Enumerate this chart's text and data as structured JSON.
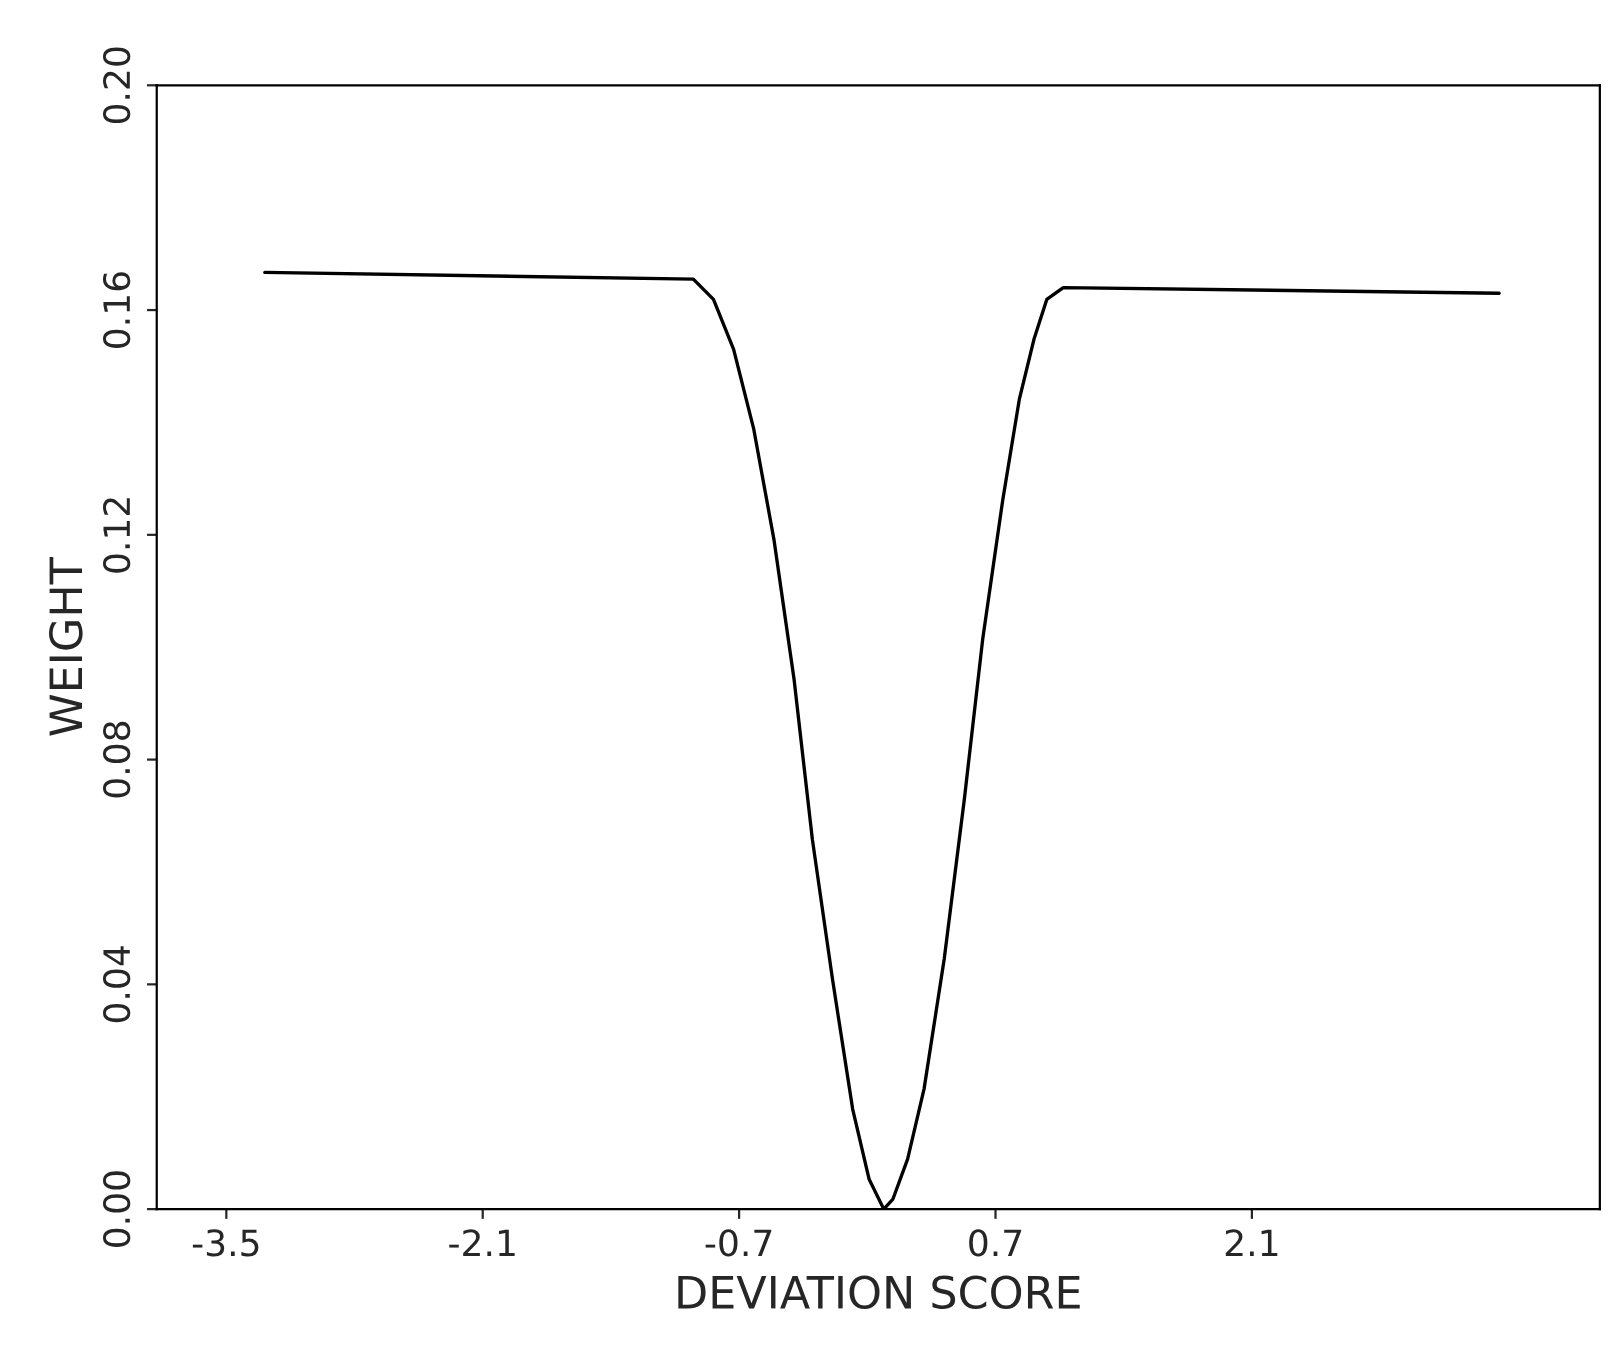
{
  "chart_data": {
    "type": "line",
    "xlabel": "DEVIATION SCORE",
    "ylabel": "WEIGHT",
    "x": [
      -3.29,
      -0.95,
      -0.84,
      -0.73,
      -0.62,
      -0.51,
      -0.4,
      -0.3,
      -0.19,
      -0.08,
      0.01,
      0.09,
      0.14,
      0.22,
      0.31,
      0.42,
      0.53,
      0.63,
      0.74,
      0.83,
      0.91,
      0.98,
      1.07,
      3.45
    ],
    "series": [
      {
        "color": "#000000",
        "values": [
          0.1667,
          0.1655,
          0.1619,
          0.153,
          0.1388,
          0.1192,
          0.0943,
          0.0658,
          0.0409,
          0.0178,
          0.0053,
          0.0,
          0.0018,
          0.0089,
          0.0214,
          0.0445,
          0.073,
          0.1014,
          0.1263,
          0.1441,
          0.1548,
          0.1619,
          0.164,
          0.163
        ]
      }
    ],
    "xlim": [
      -3.88,
      4.0
    ],
    "xticks": [
      -3.5,
      -2.1,
      -0.7,
      0.7,
      2.1
    ],
    "ylim": [
      0,
      0.2
    ],
    "yticks": [
      {
        "value": 0,
        "label": "0.00"
      },
      {
        "value": 0.04,
        "label": "0.04"
      },
      {
        "value": 0.08,
        "label": "0.08"
      },
      {
        "value": 0.12,
        "label": "0.12"
      },
      {
        "value": 0.16,
        "label": "0.16"
      },
      {
        "value": 0.2,
        "label": "0.20"
      }
    ],
    "grid": false,
    "marker": "none",
    "line_style": "solid"
  }
}
